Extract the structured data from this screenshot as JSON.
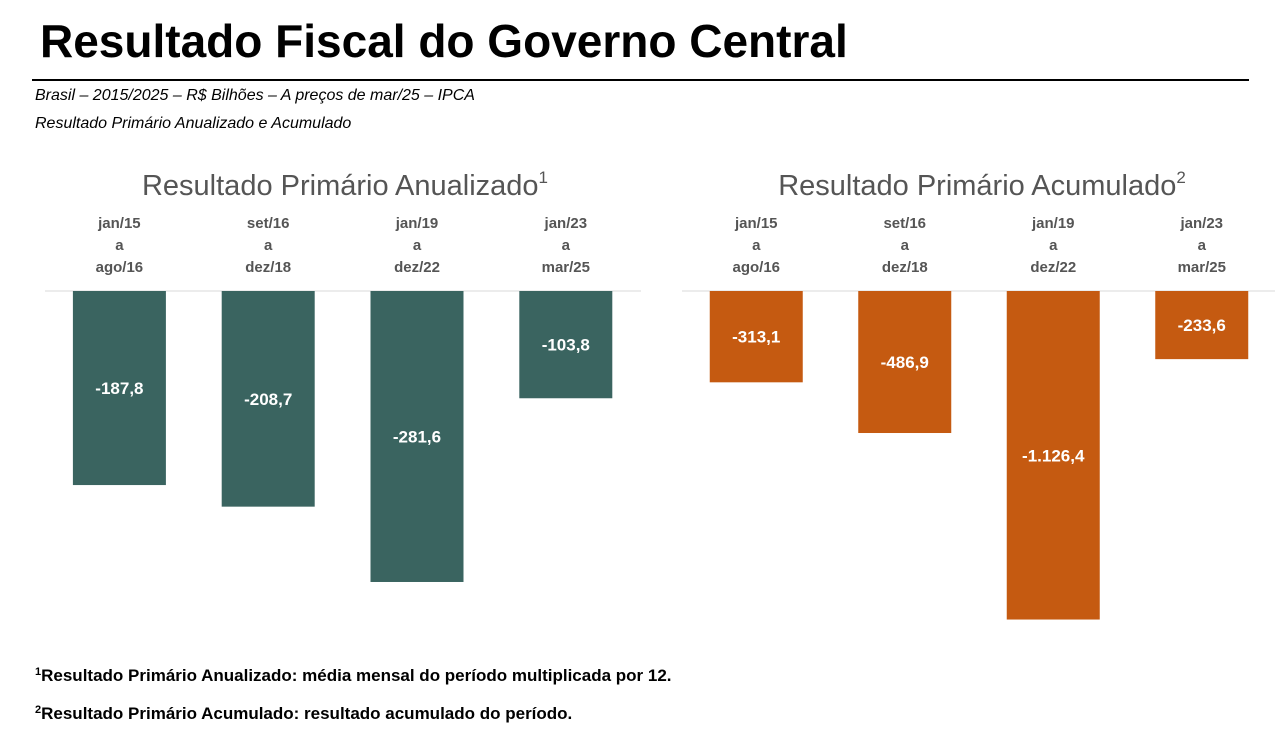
{
  "title": "Resultado Fiscal do Governo Central",
  "subtitle_line1": "Brasil – 2015/2025 – R$ Bilhões – A preços de mar/25 – IPCA",
  "subtitle_line2": "Resultado Primário Anualizado e Acumulado",
  "colors": {
    "annualized": "#3a6460",
    "accumulated": "#c55a11"
  },
  "chart_data": [
    {
      "type": "bar",
      "title": "Resultado Primário Anualizado",
      "title_superscript": "1",
      "categories": [
        [
          "jan/15",
          "a",
          "ago/16"
        ],
        [
          "set/16",
          "a",
          "dez/18"
        ],
        [
          "jan/19",
          "a",
          "dez/22"
        ],
        [
          "jan/23",
          "a",
          "mar/25"
        ]
      ],
      "values": [
        -187.8,
        -208.7,
        -281.6,
        -103.8
      ],
      "value_labels": [
        "-187,8",
        "-208,7",
        "-281,6",
        "-103,8"
      ],
      "ylim": [
        -300,
        0
      ],
      "grid": false,
      "legend": "none"
    },
    {
      "type": "bar",
      "title": "Resultado Primário Acumulado",
      "title_superscript": "2",
      "categories": [
        [
          "jan/15",
          "a",
          "ago/16"
        ],
        [
          "set/16",
          "a",
          "dez/18"
        ],
        [
          "jan/19",
          "a",
          "dez/22"
        ],
        [
          "jan/23",
          "a",
          "mar/25"
        ]
      ],
      "values": [
        -313.1,
        -486.9,
        -1126.4,
        -233.6
      ],
      "value_labels": [
        "-313,1",
        "-486,9",
        "-1.126,4",
        "-233,6"
      ],
      "ylim": [
        -1200,
        0
      ],
      "grid": false,
      "legend": "none"
    }
  ],
  "footnotes": [
    {
      "marker": "1",
      "text": "Resultado Primário Anualizado: média mensal do período multiplicada por 12."
    },
    {
      "marker": "2",
      "text": "Resultado Primário Acumulado: resultado acumulado do período."
    }
  ]
}
